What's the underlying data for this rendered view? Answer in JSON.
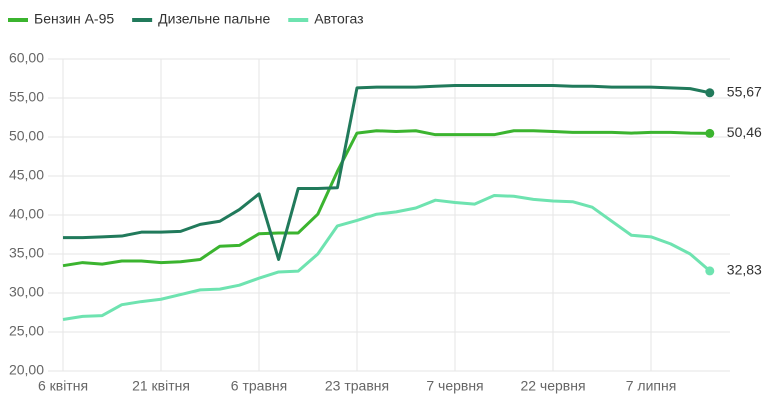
{
  "chart_data": {
    "type": "line",
    "categories": [
      "6 квітня",
      null,
      null,
      null,
      null,
      "21 квітня",
      null,
      null,
      null,
      null,
      "6 травня",
      null,
      null,
      null,
      null,
      "23 травня",
      null,
      null,
      null,
      null,
      "7 червня",
      null,
      null,
      null,
      null,
      "22 червня",
      null,
      null,
      null,
      null,
      "7 липня",
      null,
      null,
      null
    ],
    "series": [
      {
        "name": "Бензин А-95",
        "color": "#3bb42f",
        "values": [
          33.5,
          33.9,
          33.7,
          34.1,
          34.1,
          33.9,
          34.0,
          34.3,
          36.0,
          36.1,
          37.6,
          37.7,
          37.7,
          40.1,
          45.6,
          50.5,
          50.8,
          50.7,
          50.8,
          50.3,
          50.3,
          50.3,
          50.3,
          50.8,
          50.8,
          50.7,
          50.6,
          50.6,
          50.6,
          50.5,
          50.6,
          50.6,
          50.5,
          50.46
        ],
        "value_labels": [
          null,
          null,
          null,
          null,
          null,
          null,
          null,
          null,
          null,
          null,
          null,
          null,
          null,
          null,
          null,
          null,
          null,
          null,
          null,
          null,
          null,
          null,
          null,
          null,
          null,
          null,
          null,
          null,
          null,
          null,
          null,
          null,
          null,
          "50,46"
        ]
      },
      {
        "name": "Дизельне пальне",
        "color": "#217a5b",
        "values": [
          37.1,
          37.1,
          37.2,
          37.3,
          37.8,
          37.8,
          37.9,
          38.8,
          39.2,
          40.7,
          42.7,
          34.3,
          43.4,
          43.4,
          43.5,
          56.3,
          56.4,
          56.4,
          56.4,
          56.5,
          56.6,
          56.6,
          56.6,
          56.6,
          56.6,
          56.6,
          56.5,
          56.5,
          56.4,
          56.4,
          56.4,
          56.3,
          56.2,
          55.67
        ],
        "value_labels": [
          null,
          null,
          null,
          null,
          null,
          null,
          null,
          null,
          null,
          null,
          null,
          null,
          null,
          null,
          null,
          null,
          null,
          null,
          null,
          null,
          null,
          null,
          null,
          null,
          null,
          null,
          null,
          null,
          null,
          null,
          null,
          null,
          null,
          "55,67"
        ]
      },
      {
        "name": "Автогаз",
        "color": "#6ee3b0",
        "values": [
          26.6,
          27.0,
          27.1,
          28.5,
          28.9,
          29.2,
          29.8,
          30.4,
          30.5,
          31.0,
          31.9,
          32.7,
          32.8,
          35.0,
          38.6,
          39.3,
          40.1,
          40.4,
          40.9,
          41.9,
          41.6,
          41.4,
          42.5,
          42.4,
          42.0,
          41.8,
          41.7,
          41.0,
          39.2,
          37.4,
          37.2,
          36.3,
          35.0,
          32.83
        ],
        "value_labels": [
          null,
          null,
          null,
          null,
          null,
          null,
          null,
          null,
          null,
          null,
          null,
          null,
          null,
          null,
          null,
          null,
          null,
          null,
          null,
          null,
          null,
          null,
          null,
          null,
          null,
          null,
          null,
          null,
          null,
          null,
          null,
          null,
          null,
          "32,83"
        ]
      }
    ],
    "ylim": [
      20,
      60
    ],
    "yticks": [
      {
        "value": 20,
        "label": "20,00"
      },
      {
        "value": 25,
        "label": "25,00"
      },
      {
        "value": 30,
        "label": "30,00"
      },
      {
        "value": 35,
        "label": "35,00"
      },
      {
        "value": 40,
        "label": "40,00"
      },
      {
        "value": 45,
        "label": "45,00"
      },
      {
        "value": 50,
        "label": "50,00"
      },
      {
        "value": 55,
        "label": "55,00"
      },
      {
        "value": 60,
        "label": "60,00"
      }
    ],
    "grid": true,
    "legend": "top-left"
  }
}
